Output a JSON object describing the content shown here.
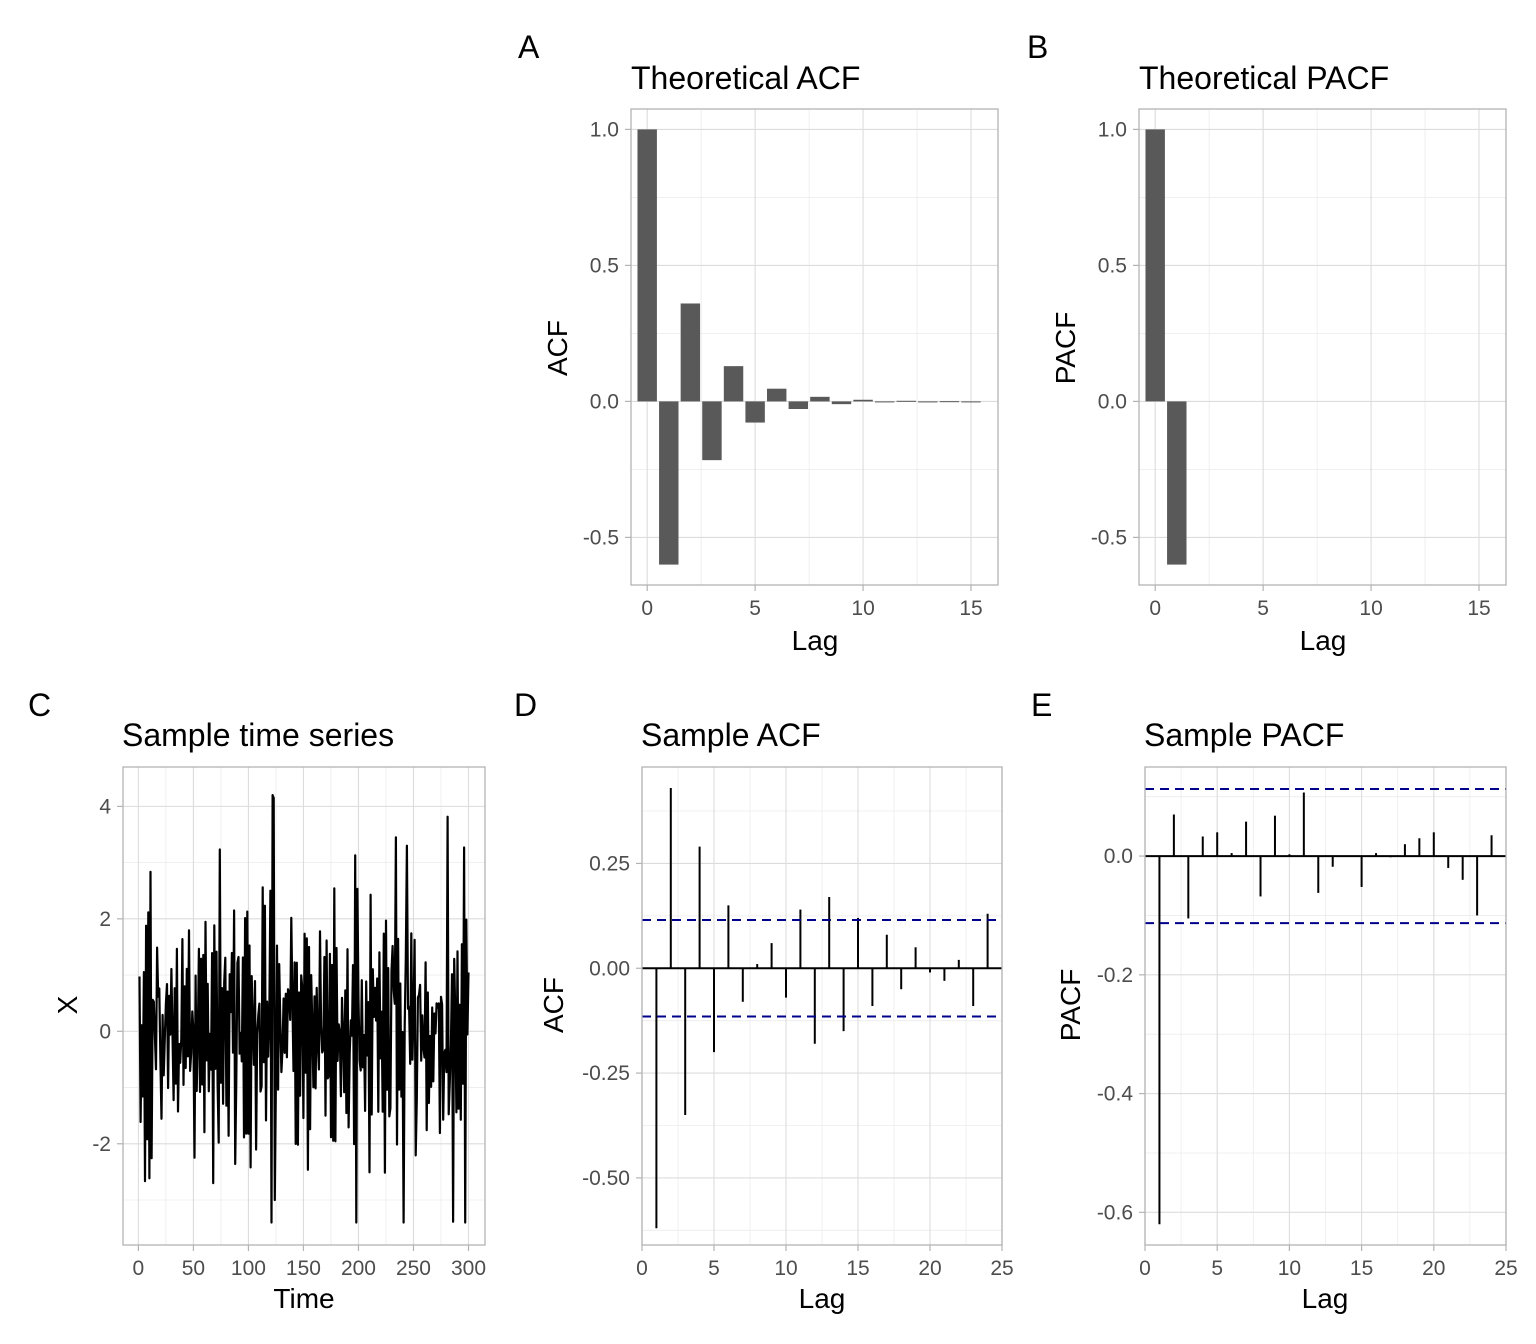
{
  "colors": {
    "bar_fill": "#595959",
    "line": "#000000",
    "ci_line": "#00008b",
    "grid": "#dcdcdc",
    "border": "#b3b3b3",
    "tick_text": "#4d4d4d"
  },
  "chart_data": [
    {
      "panel": "A",
      "type": "bar",
      "title": "Theoretical ACF",
      "xlabel": "Lag",
      "ylabel": "ACF",
      "xlim": [
        -0.75,
        16.25
      ],
      "ylim": [
        -0.675,
        1.075
      ],
      "xticks": [
        0,
        5,
        10,
        15
      ],
      "xtick_labels": [
        "0",
        "5",
        "10",
        "15"
      ],
      "yticks": [
        -0.5,
        0,
        0.5,
        1
      ],
      "ytick_labels": [
        "-0.5",
        "0.0",
        "0.5",
        "1.0"
      ],
      "x": [
        0,
        1,
        2,
        3,
        4,
        5,
        6,
        7,
        8,
        9,
        10,
        11,
        12,
        13,
        14,
        15
      ],
      "values": [
        1.0,
        -0.6,
        0.36,
        -0.216,
        0.1296,
        -0.0778,
        0.0467,
        -0.028,
        0.0168,
        -0.0101,
        0.006,
        -0.0036,
        0.0022,
        -0.0013,
        0.0008,
        -0.0005
      ],
      "grid": true
    },
    {
      "panel": "B",
      "type": "bar",
      "title": "Theoretical PACF",
      "xlabel": "Lag",
      "ylabel": "PACF",
      "xlim": [
        -0.75,
        16.25
      ],
      "ylim": [
        -0.675,
        1.075
      ],
      "xticks": [
        0,
        5,
        10,
        15
      ],
      "xtick_labels": [
        "0",
        "5",
        "10",
        "15"
      ],
      "yticks": [
        -0.5,
        0,
        0.5,
        1
      ],
      "ytick_labels": [
        "-0.5",
        "0.0",
        "0.5",
        "1.0"
      ],
      "x": [
        0,
        1
      ],
      "values": [
        1.0,
        -0.6
      ],
      "grid": true
    },
    {
      "panel": "C",
      "type": "line",
      "title": "Sample time series",
      "xlabel": "Time",
      "ylabel": "X",
      "xlim": [
        -14,
        315
      ],
      "ylim": [
        -3.8,
        4.7
      ],
      "xticks": [
        0,
        50,
        100,
        150,
        200,
        250,
        300
      ],
      "xtick_labels": [
        "0",
        "50",
        "100",
        "150",
        "200",
        "250",
        "300"
      ],
      "yticks": [
        -2,
        0,
        2,
        4
      ],
      "ytick_labels": [
        "-2",
        "0",
        "2",
        "4"
      ],
      "n": 300,
      "y_min": -3.4,
      "y_max": 4.2,
      "grid": true
    },
    {
      "panel": "D",
      "type": "bar",
      "title": "Sample ACF",
      "xlabel": "Lag",
      "ylabel": "ACF",
      "xlim": [
        0,
        25
      ],
      "ylim": [
        -0.66,
        0.48
      ],
      "xticks": [
        0,
        5,
        10,
        15,
        20,
        25
      ],
      "xtick_labels": [
        "0",
        "5",
        "10",
        "15",
        "20",
        "25"
      ],
      "yticks": [
        -0.5,
        -0.25,
        0,
        0.25
      ],
      "ytick_labels": [
        "-0.50",
        "-0.25",
        "0.00",
        "0.25"
      ],
      "x": [
        1,
        2,
        3,
        4,
        5,
        6,
        7,
        8,
        9,
        10,
        11,
        12,
        13,
        14,
        15,
        16,
        17,
        18,
        19,
        20,
        21,
        22,
        23,
        24
      ],
      "values": [
        -0.62,
        0.43,
        -0.35,
        0.29,
        -0.2,
        0.15,
        -0.08,
        0.01,
        0.06,
        -0.07,
        0.14,
        -0.18,
        0.17,
        -0.15,
        0.12,
        -0.09,
        0.08,
        -0.05,
        0.05,
        -0.01,
        -0.03,
        0.02,
        -0.09,
        0.13
      ],
      "ci": 0.115,
      "grid": true
    },
    {
      "panel": "E",
      "type": "bar",
      "title": "Sample PACF",
      "xlabel": "Lag",
      "ylabel": "PACF",
      "xlim": [
        0,
        25
      ],
      "ylim": [
        -0.655,
        0.15
      ],
      "xticks": [
        0,
        5,
        10,
        15,
        20,
        25
      ],
      "xtick_labels": [
        "0",
        "5",
        "10",
        "15",
        "20",
        "25"
      ],
      "yticks": [
        -0.6,
        -0.4,
        -0.2,
        0
      ],
      "ytick_labels": [
        "-0.6",
        "-0.4",
        "-0.2",
        "0.0"
      ],
      "x": [
        1,
        2,
        3,
        4,
        5,
        6,
        7,
        8,
        9,
        10,
        11,
        12,
        13,
        14,
        15,
        16,
        17,
        18,
        19,
        20,
        21,
        22,
        23,
        24
      ],
      "values": [
        -0.62,
        0.07,
        -0.105,
        0.033,
        0.04,
        0.005,
        0.058,
        -0.068,
        0.068,
        0.003,
        0.107,
        -0.062,
        -0.018,
        0.001,
        -0.052,
        0.005,
        -0.002,
        0.02,
        0.03,
        0.04,
        -0.02,
        -0.04,
        -0.1,
        0.035
      ],
      "ci": 0.113,
      "grid": true
    }
  ]
}
